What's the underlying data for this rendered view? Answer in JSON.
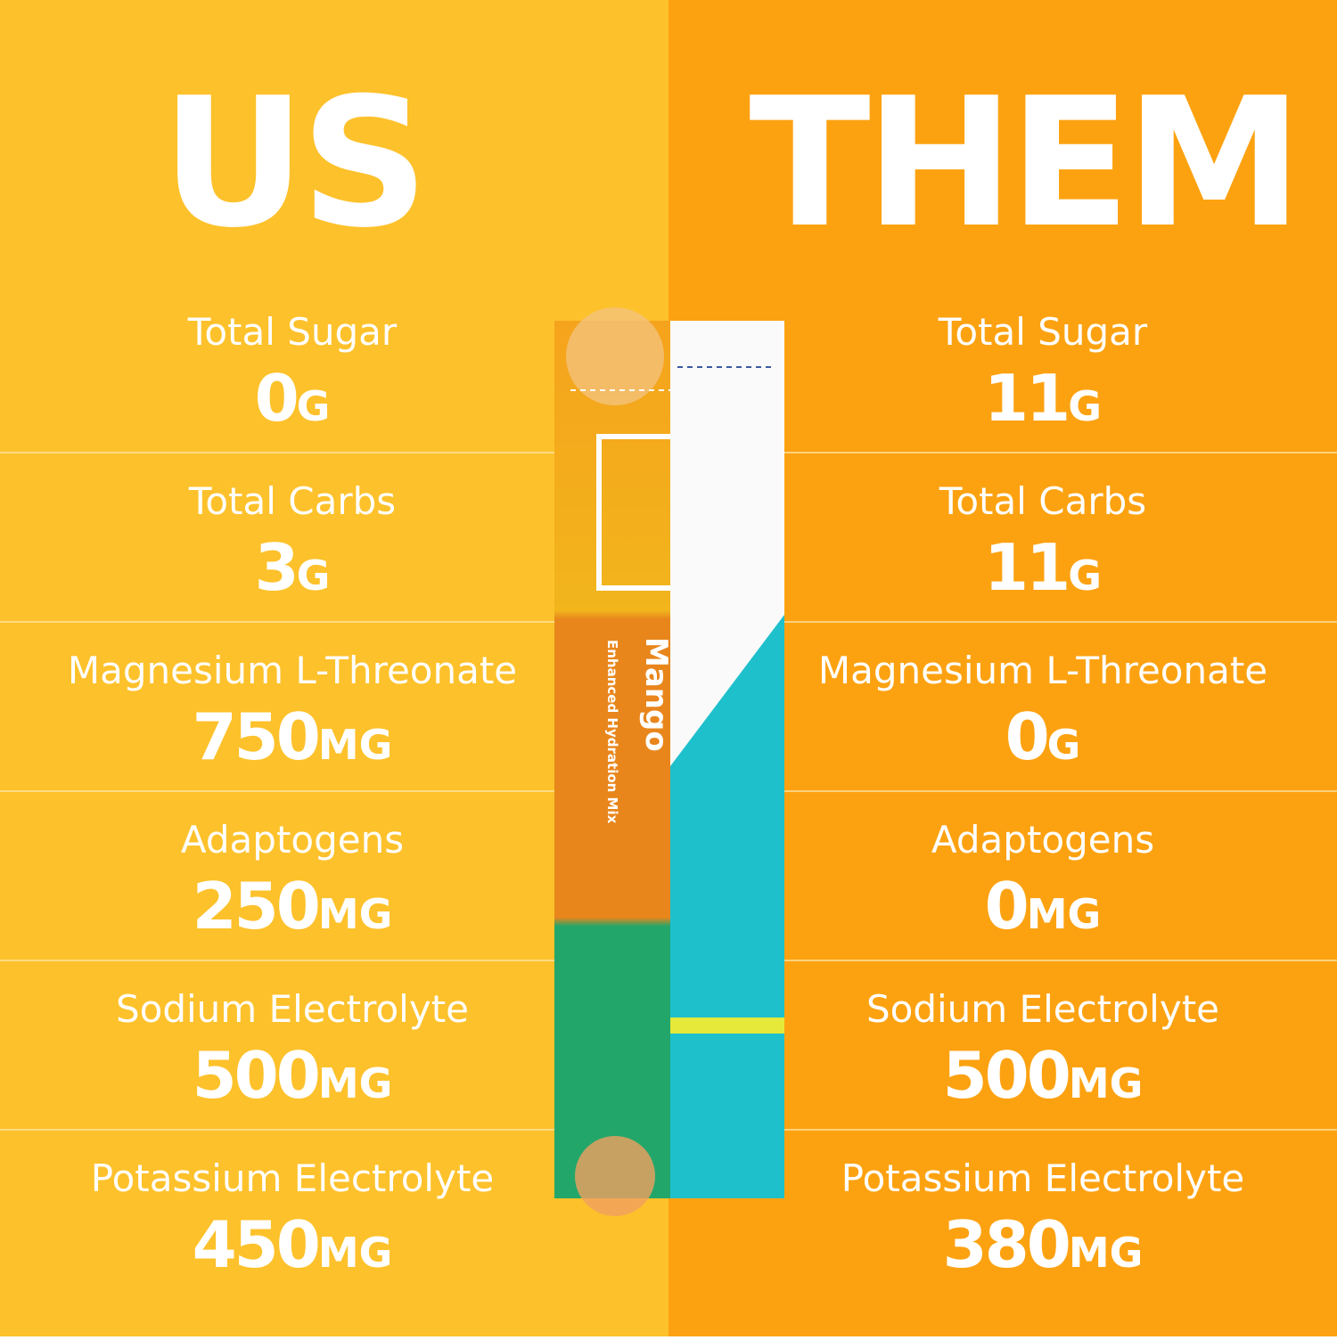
{
  "left": {
    "title": "US",
    "rows": [
      {
        "label": "Total Sugar",
        "value": "0",
        "unit": "G"
      },
      {
        "label": "Total Carbs",
        "value": "3",
        "unit": "G"
      },
      {
        "label": "Magnesium L-Threonate",
        "value": "750",
        "unit": "MG"
      },
      {
        "label": "Adaptogens",
        "value": "250",
        "unit": "MG"
      },
      {
        "label": "Sodium Electrolyte",
        "value": "500",
        "unit": "MG"
      },
      {
        "label": "Potassium Electrolyte",
        "value": "450",
        "unit": "MG"
      }
    ]
  },
  "right": {
    "title": "THEM",
    "rows": [
      {
        "label": "Total Sugar",
        "value": "11",
        "unit": "G"
      },
      {
        "label": "Total Carbs",
        "value": "11",
        "unit": "G"
      },
      {
        "label": "Magnesium L-Threonate",
        "value": "0",
        "unit": "G"
      },
      {
        "label": "Adaptogens",
        "value": "0",
        "unit": "MG"
      },
      {
        "label": "Sodium Electrolyte",
        "value": "500",
        "unit": "MG"
      },
      {
        "label": "Potassium Electrolyte",
        "value": "380",
        "unit": "MG"
      }
    ]
  },
  "packet": {
    "flavor": "Mango",
    "subtitle": "Enhanced Hydration Mix"
  }
}
